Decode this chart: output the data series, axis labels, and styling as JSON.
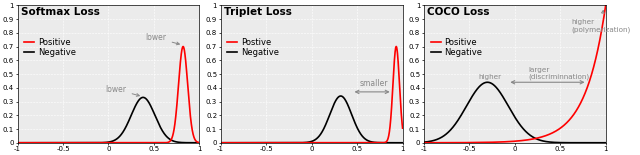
{
  "panels": [
    {
      "title": "Softmax Loss",
      "legend": [
        "Positive",
        "Negative"
      ],
      "xlim": [
        -1,
        1
      ],
      "ylim": [
        0,
        1
      ]
    },
    {
      "title": "Triplet Loss",
      "legend": [
        "Postive",
        "Negative"
      ],
      "xlim": [
        -1,
        1
      ],
      "ylim": [
        0,
        1
      ]
    },
    {
      "title": "COCO Loss",
      "legend": [
        "Positive",
        "Negative"
      ],
      "xlim": [
        -1,
        1
      ],
      "ylim": [
        0,
        1
      ]
    }
  ],
  "bg_color": "#ebebeb",
  "pos_color": "#ff0000",
  "neg_color": "#000000",
  "annotation_color": "#888888",
  "title_fontsize": 7.5,
  "legend_fontsize": 6,
  "tick_fontsize": 5,
  "annot_fontsize": 5.5
}
